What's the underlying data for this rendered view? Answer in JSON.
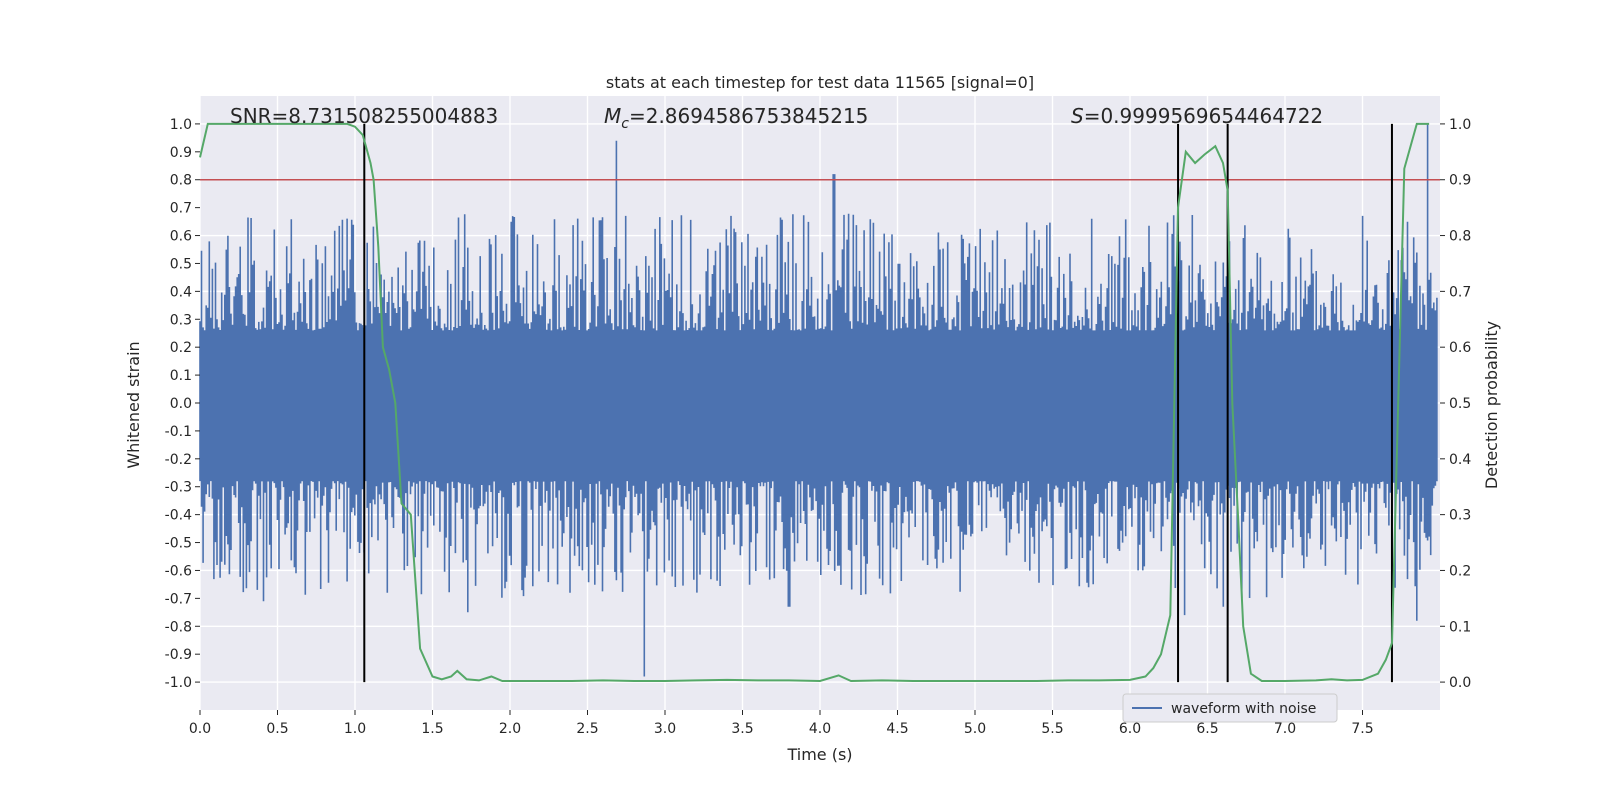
{
  "chart_data": {
    "type": "line",
    "title": "stats at each timestep for test data 11565 [signal=0]",
    "xlabel": "Time (s)",
    "ylabel": "Whitened strain",
    "y2label": "Detection probability",
    "xlim": [
      0.0,
      8.0
    ],
    "ylim": [
      -1.1,
      1.1
    ],
    "y2lim": [
      -0.05,
      1.05
    ],
    "xticks": [
      "0.0",
      "0.5",
      "1.0",
      "1.5",
      "2.0",
      "2.5",
      "3.0",
      "3.5",
      "4.0",
      "4.5",
      "5.0",
      "5.5",
      "6.0",
      "6.5",
      "7.0",
      "7.5"
    ],
    "xtick_values": [
      0.0,
      0.5,
      1.0,
      1.5,
      2.0,
      2.5,
      3.0,
      3.5,
      4.0,
      4.5,
      5.0,
      5.5,
      6.0,
      6.5,
      7.0,
      7.5
    ],
    "yticks": [
      "1.0",
      "0.9",
      "0.8",
      "0.7",
      "0.6",
      "0.5",
      "0.4",
      "0.3",
      "0.2",
      "0.1",
      "0.0",
      "-0.1",
      "-0.2",
      "-0.3",
      "-0.4",
      "-0.5",
      "-0.6",
      "-0.7",
      "-0.8",
      "-0.9",
      "-1.0"
    ],
    "ytick_values": [
      1.0,
      0.9,
      0.8,
      0.7,
      0.6,
      0.5,
      0.4,
      0.3,
      0.2,
      0.1,
      0.0,
      -0.1,
      -0.2,
      -0.3,
      -0.4,
      -0.5,
      -0.6,
      -0.7,
      -0.8,
      -0.9,
      -1.0
    ],
    "y2ticks": [
      "1.0",
      "0.9",
      "0.8",
      "0.7",
      "0.6",
      "0.5",
      "0.4",
      "0.3",
      "0.2",
      "0.1",
      "0.0"
    ],
    "y2tick_values": [
      1.0,
      0.9,
      0.8,
      0.7,
      0.6,
      0.5,
      0.4,
      0.3,
      0.2,
      0.1,
      0.0
    ],
    "annotations": {
      "snr": "SNR=8.731508255004883",
      "mc_symbol": "M",
      "mc_sub": "c",
      "mc_value": "=2.8694586753845215",
      "s_symbol": "S",
      "s_value": "=0.9999569654464722"
    },
    "threshold": {
      "value": 0.9,
      "axis": "right",
      "color": "#c44e52"
    },
    "vertical_lines": [
      1.06,
      6.31,
      6.63,
      7.69
    ],
    "legend": {
      "label": "waveform with noise",
      "position": "bottom-right"
    },
    "noise": {
      "name": "waveform with noise",
      "color": "#4c72b0",
      "band_envelope": 0.2,
      "samples": 800,
      "x_range": [
        0.0,
        7.98
      ],
      "peaks": [
        {
          "x": 2.69,
          "y": 0.94
        },
        {
          "x": 4.09,
          "y": 0.82
        },
        {
          "x": 2.87,
          "y": -0.98
        },
        {
          "x": 7.92,
          "y": 1.0
        },
        {
          "x": 0.41,
          "y": -0.71
        },
        {
          "x": 1.73,
          "y": -0.75
        },
        {
          "x": 6.35,
          "y": -0.76
        },
        {
          "x": 7.85,
          "y": -0.78
        },
        {
          "x": 6.6,
          "y": -0.73
        },
        {
          "x": 3.8,
          "y": -0.73
        }
      ]
    },
    "probability": {
      "name": "detection probability",
      "color": "#55a868",
      "x": [
        0.0,
        0.05,
        0.1,
        0.2,
        0.4,
        0.6,
        0.8,
        0.95,
        1.0,
        1.05,
        1.1,
        1.12,
        1.15,
        1.18,
        1.22,
        1.26,
        1.3,
        1.36,
        1.42,
        1.5,
        1.56,
        1.62,
        1.66,
        1.72,
        1.8,
        1.88,
        1.95,
        2.1,
        2.4,
        2.6,
        2.8,
        3.0,
        3.2,
        3.4,
        3.6,
        3.8,
        4.0,
        4.12,
        4.2,
        4.4,
        4.6,
        4.8,
        5.0,
        5.2,
        5.4,
        5.6,
        5.8,
        6.0,
        6.1,
        6.15,
        6.2,
        6.26,
        6.31,
        6.36,
        6.42,
        6.48,
        6.55,
        6.6,
        6.63,
        6.66,
        6.7,
        6.73,
        6.78,
        6.85,
        7.0,
        7.2,
        7.3,
        7.4,
        7.5,
        7.6,
        7.65,
        7.69,
        7.73,
        7.77,
        7.85,
        7.93
      ],
      "y": [
        0.94,
        1.0,
        1.0,
        1.0,
        1.0,
        1.0,
        1.0,
        1.0,
        0.995,
        0.98,
        0.93,
        0.9,
        0.78,
        0.6,
        0.56,
        0.5,
        0.32,
        0.3,
        0.06,
        0.01,
        0.005,
        0.01,
        0.02,
        0.005,
        0.003,
        0.01,
        0.002,
        0.002,
        0.002,
        0.003,
        0.002,
        0.002,
        0.003,
        0.004,
        0.003,
        0.003,
        0.002,
        0.012,
        0.002,
        0.003,
        0.002,
        0.002,
        0.002,
        0.002,
        0.002,
        0.003,
        0.003,
        0.004,
        0.01,
        0.025,
        0.05,
        0.12,
        0.85,
        0.95,
        0.93,
        0.945,
        0.96,
        0.93,
        0.88,
        0.5,
        0.28,
        0.1,
        0.015,
        0.002,
        0.002,
        0.003,
        0.005,
        0.003,
        0.004,
        0.015,
        0.04,
        0.07,
        0.5,
        0.92,
        1.0,
        1.0
      ]
    }
  }
}
